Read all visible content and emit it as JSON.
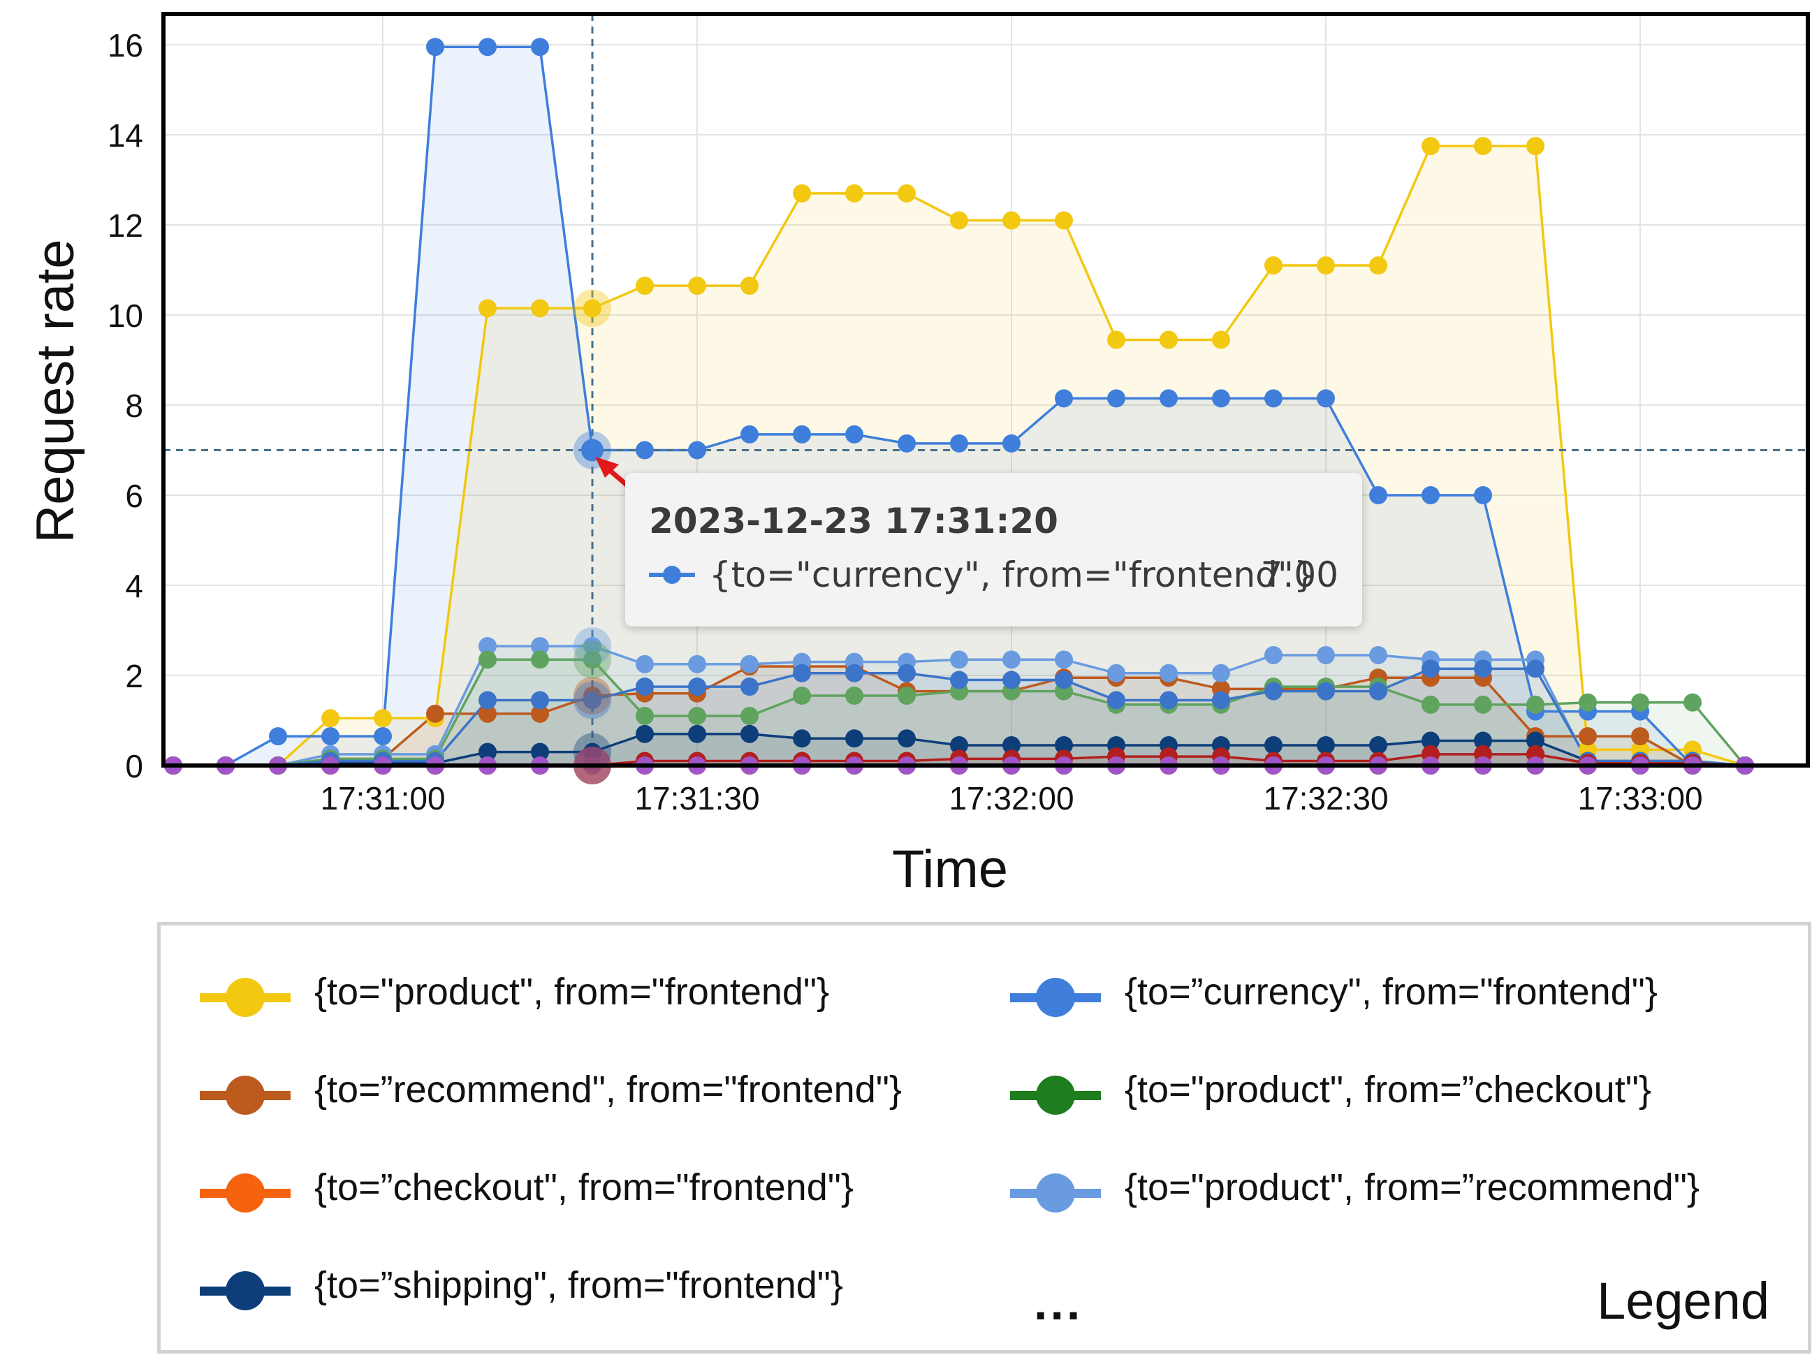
{
  "chart_data": {
    "type": "area",
    "xlabel": "Time",
    "ylabel": "Request rate",
    "x": [
      "17:30:40",
      "17:30:45",
      "17:30:50",
      "17:30:55",
      "17:31:00",
      "17:31:05",
      "17:31:10",
      "17:31:15",
      "17:31:20",
      "17:31:25",
      "17:31:30",
      "17:31:35",
      "17:31:40",
      "17:31:45",
      "17:31:50",
      "17:31:55",
      "17:32:00",
      "17:32:05",
      "17:32:10",
      "17:32:15",
      "17:32:20",
      "17:32:25",
      "17:32:30",
      "17:32:35",
      "17:32:40",
      "17:32:45",
      "17:32:50",
      "17:32:55",
      "17:33:00",
      "17:33:05",
      "17:33:10"
    ],
    "xtick_labels": [
      "17:31:00",
      "17:31:30",
      "17:32:00",
      "17:32:30",
      "17:33:00"
    ],
    "ylim": [
      0,
      16
    ],
    "yticks": [
      0,
      2,
      4,
      6,
      8,
      10,
      12,
      14,
      16
    ],
    "grid": true,
    "legend_position": "bottom",
    "crosshair": {
      "x": "17:31:20",
      "y": 7.0
    },
    "series": [
      {
        "name": "{to=\"product\", from=\"frontend\"}",
        "color": "#f2c811",
        "values": [
          0,
          0,
          0,
          1.05,
          1.05,
          1.05,
          10.15,
          10.15,
          10.15,
          10.65,
          10.65,
          10.65,
          12.7,
          12.7,
          12.7,
          12.1,
          12.1,
          12.1,
          9.45,
          9.45,
          9.45,
          11.1,
          11.1,
          11.1,
          13.75,
          13.75,
          13.75,
          0.35,
          0.35,
          0.35,
          0
        ]
      },
      {
        "name": "{to=”currency\", from=\"frontend\"}",
        "color": "#3f7edb",
        "values": [
          0,
          0,
          0.65,
          0.65,
          0.65,
          15.95,
          15.95,
          15.95,
          7.0,
          7.0,
          7.0,
          7.35,
          7.35,
          7.35,
          7.15,
          7.15,
          7.15,
          8.15,
          8.15,
          8.15,
          8.15,
          8.15,
          8.15,
          6.0,
          6.0,
          6.0,
          1.2,
          1.2,
          1.2,
          0,
          0
        ]
      },
      {
        "name": "{to=”recommend\", from=\"frontend\"}",
        "color": "#bd5a1e",
        "values": [
          0,
          0,
          0,
          0.15,
          0.15,
          1.15,
          1.15,
          1.15,
          1.55,
          1.6,
          1.6,
          2.2,
          2.2,
          2.2,
          1.65,
          1.65,
          1.65,
          1.95,
          1.95,
          1.95,
          1.7,
          1.7,
          1.7,
          1.95,
          1.95,
          1.95,
          0.65,
          0.65,
          0.65,
          0,
          0
        ]
      },
      {
        "name": "{to=\"product\", from=”checkout\"}",
        "color": "#1e7d1e",
        "values": [
          0,
          0,
          0,
          0,
          0,
          0,
          0,
          0,
          0,
          0,
          0,
          0,
          0,
          0,
          0,
          0,
          0,
          0,
          0,
          0,
          0,
          0,
          0,
          0,
          0,
          0,
          0,
          0,
          0,
          0,
          0
        ]
      },
      {
        "name": "{to=”checkout\", from=\"frontend\"}",
        "color": "#f5630f",
        "values": [
          0,
          0,
          0,
          0,
          0,
          0,
          0,
          0,
          0,
          0,
          0,
          0,
          0,
          0,
          0,
          0,
          0,
          0,
          0,
          0,
          0,
          0,
          0,
          0,
          0,
          0,
          0,
          0,
          0,
          0,
          0
        ]
      },
      {
        "name": "{to=\"product\", from=”recommend\"}",
        "color": "#6a9be0",
        "values": [
          0,
          0,
          0,
          0.25,
          0.25,
          0.25,
          2.65,
          2.65,
          2.65,
          2.25,
          2.25,
          2.25,
          2.3,
          2.3,
          2.3,
          2.35,
          2.35,
          2.35,
          2.05,
          2.05,
          2.05,
          2.45,
          2.45,
          2.45,
          2.35,
          2.35,
          2.35,
          0.05,
          0.05,
          0.05,
          0
        ]
      },
      {
        "name": "{to=”shipping\", from=\"frontend\"}",
        "color": "#0d3e7a",
        "values": [
          0,
          0,
          0,
          0.05,
          0.05,
          0.05,
          0.3,
          0.3,
          0.3,
          0.7,
          0.7,
          0.7,
          0.6,
          0.6,
          0.6,
          0.45,
          0.45,
          0.45,
          0.45,
          0.45,
          0.45,
          0.45,
          0.45,
          0.45,
          0.55,
          0.55,
          0.55,
          0.1,
          0.1,
          0.1,
          0
        ]
      },
      {
        "color": "#5fa35f",
        "values": [
          0,
          0,
          0,
          0.15,
          0.15,
          0.15,
          2.35,
          2.35,
          2.35,
          1.1,
          1.1,
          1.1,
          1.55,
          1.55,
          1.55,
          1.65,
          1.65,
          1.65,
          1.35,
          1.35,
          1.35,
          1.75,
          1.75,
          1.75,
          1.35,
          1.35,
          1.35,
          1.4,
          1.4,
          1.4,
          0
        ]
      },
      {
        "color": "#3b74c8",
        "values": [
          0,
          0,
          0,
          0.1,
          0.1,
          0.1,
          1.45,
          1.45,
          1.45,
          1.75,
          1.75,
          1.75,
          2.05,
          2.05,
          2.05,
          1.9,
          1.9,
          1.9,
          1.45,
          1.45,
          1.45,
          1.65,
          1.65,
          1.65,
          2.15,
          2.15,
          2.15,
          0.1,
          0.1,
          0.1,
          0
        ]
      },
      {
        "color": "#b31f1f",
        "values": [
          0,
          0,
          0,
          0,
          0,
          0,
          0,
          0,
          0,
          0.1,
          0.1,
          0.1,
          0.1,
          0.1,
          0.1,
          0.15,
          0.15,
          0.15,
          0.2,
          0.2,
          0.2,
          0.1,
          0.1,
          0.1,
          0.25,
          0.25,
          0.25,
          0.05,
          0.05,
          0.05,
          0
        ]
      },
      {
        "color": "#a056c8",
        "values": [
          0,
          0,
          0,
          0,
          0,
          0,
          0,
          0,
          0,
          0,
          0,
          0,
          0,
          0,
          0,
          0,
          0,
          0,
          0,
          0,
          0,
          0,
          0,
          0,
          0,
          0,
          0,
          0,
          0,
          0,
          0
        ]
      }
    ]
  },
  "tooltip": {
    "timestamp": "2023-12-23 17:31:20",
    "series_label": "{to=\"currency\", from=\"frontend\"}",
    "value": "7.00"
  },
  "legend": {
    "items": [
      {
        "label": "{to=\"product\", from=\"frontend\"}",
        "color": "#f2c811"
      },
      {
        "label": "{to=”currency\", from=\"frontend\"}",
        "color": "#3f7edb"
      },
      {
        "label": "{to=”recommend\", from=\"frontend\"}",
        "color": "#bd5a1e"
      },
      {
        "label": "{to=\"product\", from=”checkout\"}",
        "color": "#1e7d1e"
      },
      {
        "label": "{to=”checkout\", from=\"frontend\"}",
        "color": "#f5630f"
      },
      {
        "label": "{to=\"product\", from=”recommend\"}",
        "color": "#6a9be0"
      },
      {
        "label": "{to=”shipping\", from=\"frontend\"}",
        "color": "#0d3e7a"
      }
    ],
    "more": "...",
    "title": "Legend"
  }
}
